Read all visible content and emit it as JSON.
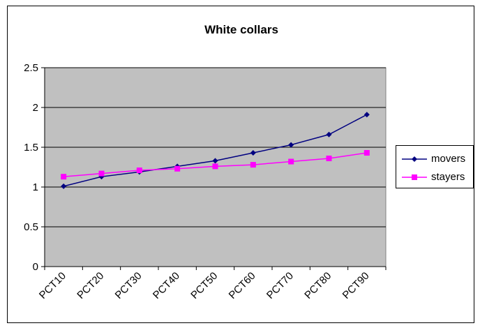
{
  "chart_data": {
    "type": "line",
    "title": "White collars",
    "xlabel": "",
    "ylabel": "",
    "categories": [
      "PCT10",
      "PCT20",
      "PCT30",
      "PCT40",
      "PCT50",
      "PCT60",
      "PCT70",
      "PCT80",
      "PCT90"
    ],
    "ylim": [
      0,
      2.5
    ],
    "yticks": [
      "0",
      "0.5",
      "1",
      "1.5",
      "2",
      "2.5"
    ],
    "grid": true,
    "legend_position": "right",
    "plot_background": "#c0c0c0",
    "series": [
      {
        "name": "movers",
        "color": "#000080",
        "marker": "diamond",
        "values": [
          1.01,
          1.13,
          1.19,
          1.26,
          1.33,
          1.43,
          1.53,
          1.66,
          1.91
        ]
      },
      {
        "name": "stayers",
        "color": "#ff00ff",
        "marker": "square",
        "values": [
          1.13,
          1.17,
          1.21,
          1.23,
          1.26,
          1.28,
          1.32,
          1.36,
          1.43
        ]
      }
    ]
  }
}
